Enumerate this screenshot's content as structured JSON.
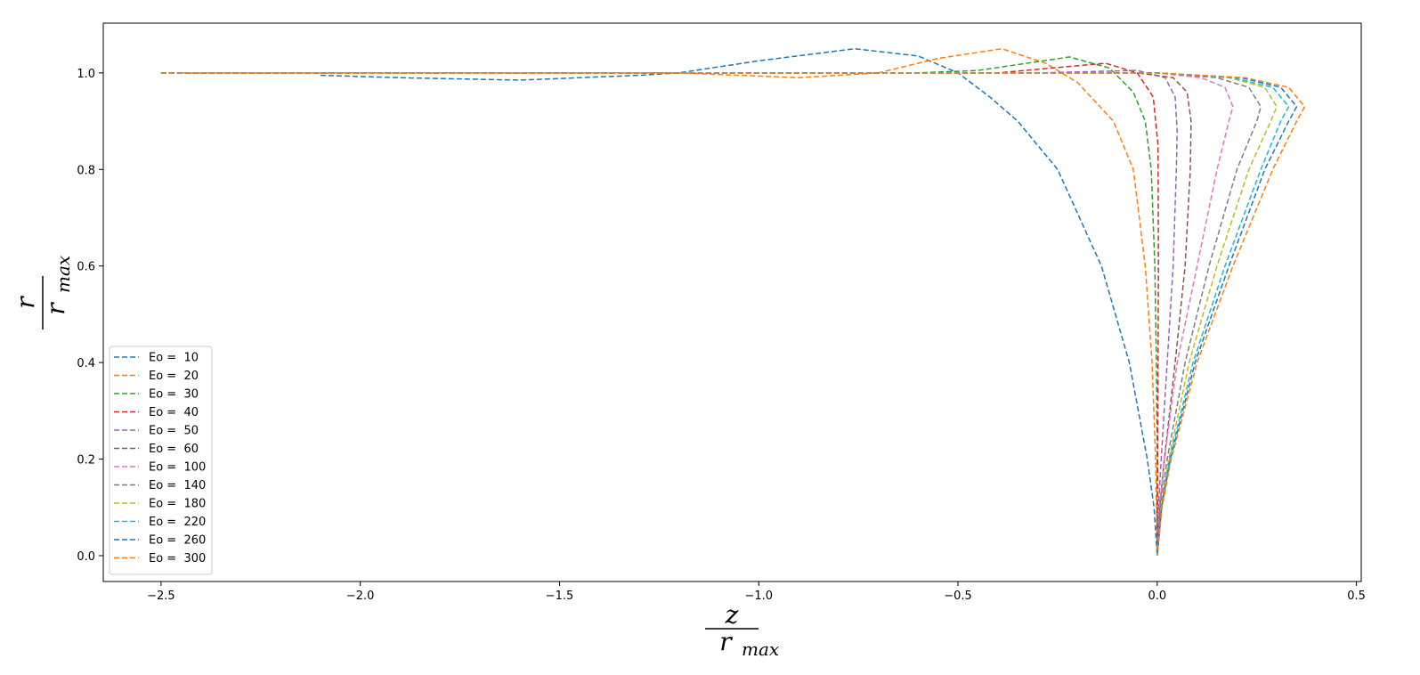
{
  "chart_data": {
    "type": "line",
    "xlabel": {
      "numerator": "z",
      "denominator": "r",
      "denominator_subscript": "max"
    },
    "ylabel": {
      "numerator": "r",
      "denominator": "r",
      "denominator_subscript": "max"
    },
    "xlim": [
      -2.645,
      0.512
    ],
    "ylim": [
      -0.0535,
      1.103
    ],
    "xticks": [
      {
        "value": -2.5,
        "label": "−2.5"
      },
      {
        "value": -2.0,
        "label": "−2.0"
      },
      {
        "value": -1.5,
        "label": "−1.5"
      },
      {
        "value": -1.0,
        "label": "−1.0"
      },
      {
        "value": -0.5,
        "label": "−0.5"
      },
      {
        "value": 0,
        "label": "0.0"
      },
      0.5
    ],
    "yticks": [
      {
        "value": 0,
        "label": "0.0"
      },
      0.2,
      0.4,
      0.6,
      0.8,
      {
        "value": 1,
        "label": "1.0"
      }
    ],
    "grid": false,
    "legend": "lower left",
    "line_style": "dashed",
    "series": [
      {
        "name": "Eo =  10",
        "color": "#1f77b4",
        "x": [
          -2.1,
          -1.9,
          -1.6,
          -1.3,
          -1.2,
          -1.0,
          -0.76,
          -0.6,
          -0.5,
          -0.42,
          -0.35,
          -0.25,
          -0.14,
          -0.07,
          -0.025,
          -0.008,
          0
        ],
        "y": [
          0.995,
          0.99,
          0.985,
          0.995,
          1.0,
          1.025,
          1.05,
          1.035,
          1.0,
          0.95,
          0.9,
          0.8,
          0.6,
          0.4,
          0.2,
          0.1,
          0
        ]
      },
      {
        "name": "Eo =  20",
        "color": "#ff7f0e",
        "x": [
          -2.45,
          -1.2,
          -0.9,
          -0.7,
          -0.55,
          -0.39,
          -0.28,
          -0.2,
          -0.11,
          -0.06,
          -0.03,
          -0.013,
          -0.004,
          0
        ],
        "y": [
          1.0,
          1.0,
          0.99,
          1.0,
          1.03,
          1.05,
          1.02,
          0.98,
          0.9,
          0.8,
          0.6,
          0.4,
          0.2,
          0
        ]
      },
      {
        "name": "Eo =  30",
        "color": "#2ca02c",
        "x": [
          -2.5,
          -0.6,
          -0.45,
          -0.22,
          -0.12,
          -0.06,
          -0.03,
          -0.015,
          -0.006,
          -0.002,
          0,
          0
        ],
        "y": [
          1.0,
          1.0,
          1.005,
          1.033,
          1.01,
          0.96,
          0.9,
          0.8,
          0.6,
          0.4,
          0.2,
          0
        ]
      },
      {
        "name": "Eo =  40",
        "color": "#d62728",
        "x": [
          -2.5,
          -0.4,
          -0.13,
          -0.05,
          -0.01,
          0.002,
          0.003,
          0.002,
          0.001,
          0
        ],
        "y": [
          1.0,
          1.0,
          1.02,
          1.0,
          0.95,
          0.85,
          0.6,
          0.4,
          0.2,
          0
        ]
      },
      {
        "name": "Eo =  50",
        "color": "#9467bd",
        "x": [
          -2.5,
          -0.3,
          -0.05,
          0.02,
          0.045,
          0.05,
          0.048,
          0.04,
          0.025,
          0.01,
          0.003,
          0
        ],
        "y": [
          1.0,
          1.0,
          1.005,
          0.99,
          0.95,
          0.88,
          0.8,
          0.6,
          0.4,
          0.2,
          0.1,
          0
        ]
      },
      {
        "name": "Eo =  60",
        "color": "#8c564b",
        "x": [
          -2.5,
          -0.3,
          -0.05,
          0.04,
          0.075,
          0.085,
          0.083,
          0.07,
          0.045,
          0.018,
          0.006,
          0
        ],
        "y": [
          1.0,
          1.0,
          1.0,
          0.99,
          0.96,
          0.9,
          0.8,
          0.6,
          0.4,
          0.2,
          0.1,
          0
        ]
      },
      {
        "name": "Eo =  100",
        "color": "#e377c2",
        "x": [
          -2.5,
          -1.0,
          0.0,
          0.11,
          0.17,
          0.19,
          0.18,
          0.15,
          0.1,
          0.05,
          0.018,
          0.006,
          0
        ],
        "y": [
          1.0,
          1.0,
          1.0,
          0.99,
          0.97,
          0.93,
          0.9,
          0.8,
          0.6,
          0.4,
          0.2,
          0.1,
          0
        ]
      },
      {
        "name": "Eo =  140",
        "color": "#7f7f7f",
        "x": [
          -2.5,
          -1.0,
          0.0,
          0.15,
          0.23,
          0.26,
          0.25,
          0.2,
          0.13,
          0.07,
          0.025,
          0.008,
          0
        ],
        "y": [
          1.0,
          1.0,
          1.0,
          0.99,
          0.97,
          0.93,
          0.9,
          0.8,
          0.6,
          0.4,
          0.2,
          0.1,
          0
        ]
      },
      {
        "name": "Eo =  180",
        "color": "#bcbd22",
        "x": [
          -2.5,
          -1.0,
          0.0,
          0.18,
          0.27,
          0.3,
          0.285,
          0.23,
          0.15,
          0.08,
          0.029,
          0.01,
          0
        ],
        "y": [
          1.0,
          1.0,
          1.0,
          0.99,
          0.97,
          0.93,
          0.9,
          0.8,
          0.6,
          0.4,
          0.2,
          0.1,
          0
        ]
      },
      {
        "name": "Eo =  220",
        "color": "#17becf",
        "x": [
          -2.5,
          -1.0,
          0.0,
          0.19,
          0.29,
          0.33,
          0.31,
          0.26,
          0.17,
          0.09,
          0.031,
          0.011,
          0
        ],
        "y": [
          1.0,
          1.0,
          1.0,
          0.99,
          0.97,
          0.93,
          0.9,
          0.8,
          0.6,
          0.4,
          0.2,
          0.1,
          0
        ]
      },
      {
        "name": "Eo =  260",
        "color": "#1f77b4",
        "x": [
          -2.5,
          -1.0,
          0.0,
          0.21,
          0.31,
          0.35,
          0.33,
          0.27,
          0.18,
          0.095,
          0.033,
          0.011,
          0
        ],
        "y": [
          1.0,
          1.0,
          1.0,
          0.99,
          0.97,
          0.93,
          0.9,
          0.8,
          0.6,
          0.4,
          0.2,
          0.1,
          0
        ]
      },
      {
        "name": "Eo =  300",
        "color": "#ff7f0e",
        "x": [
          -2.5,
          -1.0,
          0.0,
          0.22,
          0.33,
          0.37,
          0.35,
          0.29,
          0.19,
          0.1,
          0.035,
          0.012,
          0
        ],
        "y": [
          1.0,
          1.0,
          1.0,
          0.99,
          0.97,
          0.93,
          0.9,
          0.8,
          0.6,
          0.4,
          0.2,
          0.1,
          0
        ]
      }
    ]
  }
}
